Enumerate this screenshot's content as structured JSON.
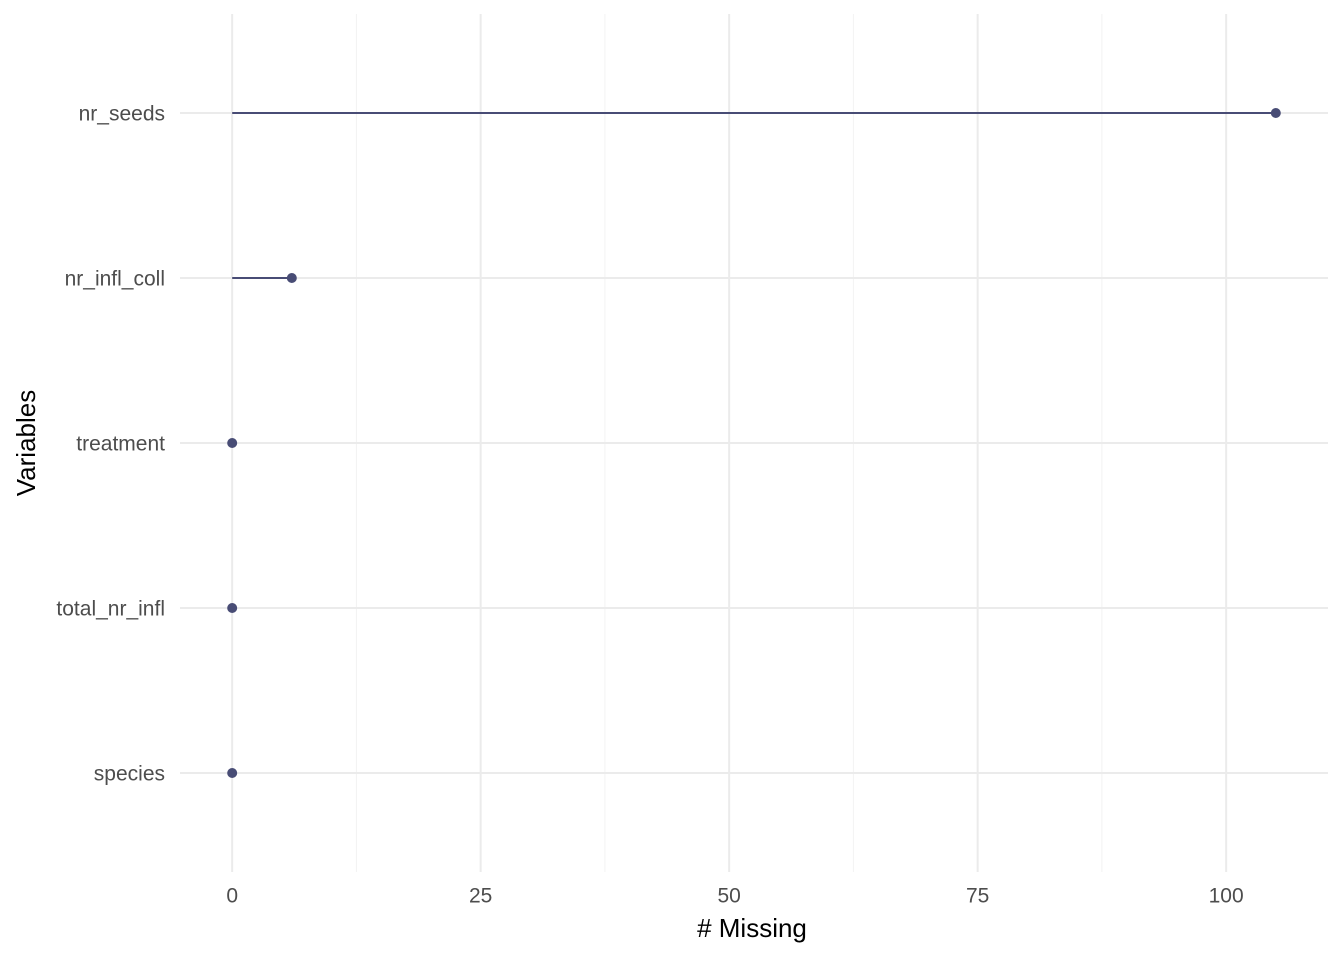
{
  "chart_data": {
    "type": "lollipop",
    "xlabel": "# Missing",
    "ylabel": "Variables",
    "categories": [
      "nr_seeds",
      "nr_infl_coll",
      "treatment",
      "total_nr_infl",
      "species"
    ],
    "values": [
      105,
      6,
      0,
      0,
      0
    ],
    "color": "#484c75",
    "xlim": [
      -5.25,
      110.25
    ],
    "xticks": [
      0,
      25,
      50,
      75,
      100
    ],
    "x_minor_ticks": [
      12.5,
      37.5,
      62.5,
      87.5
    ],
    "grid": true
  }
}
